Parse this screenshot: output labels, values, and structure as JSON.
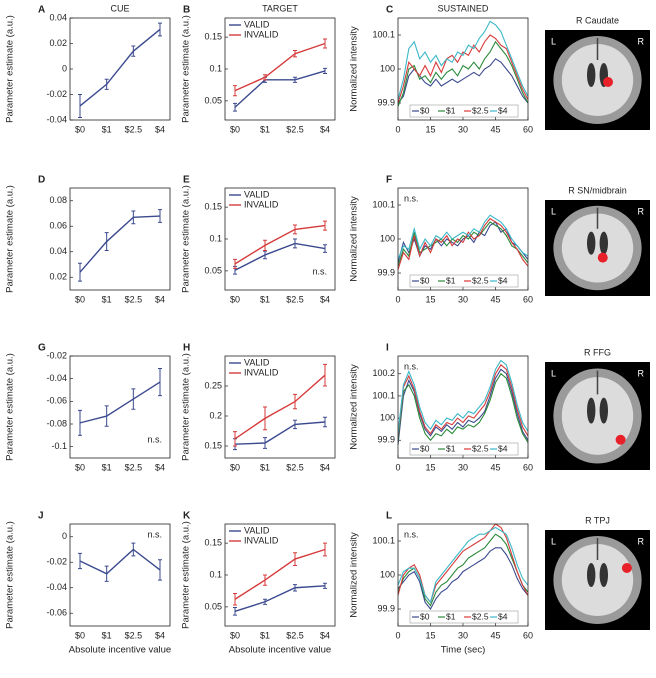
{
  "chart_data": [
    {
      "type": "line",
      "panel": "A",
      "title": "CUE",
      "ylabel": "Parameter estimate (a.u.)",
      "categories": [
        "$0",
        "$1",
        "$2.5",
        "$4"
      ],
      "ylim": [
        -0.04,
        0.04
      ],
      "yticks": [
        -0.04,
        -0.02,
        0,
        0.02,
        0.04
      ],
      "series": [
        {
          "color": "#3b4a8f",
          "values": [
            -0.029,
            -0.012,
            0.014,
            0.031
          ],
          "errors": [
            0.009,
            0.004,
            0.004,
            0.005
          ]
        }
      ]
    },
    {
      "type": "line",
      "panel": "B",
      "title": "TARGET",
      "ylabel": "Parameter estimate (a.u.)",
      "categories": [
        "$0",
        "$1",
        "$2.5",
        "$4"
      ],
      "ylim": [
        0.02,
        0.18
      ],
      "yticks": [
        0.05,
        0.1,
        0.15
      ],
      "series": [
        {
          "name": "VALID",
          "color": "#3b4a8f",
          "values": [
            0.04,
            0.083,
            0.083,
            0.097
          ],
          "errors": [
            0.006,
            0.004,
            0.004,
            0.004
          ]
        },
        {
          "name": "INVALID",
          "color": "#d63a3a",
          "values": [
            0.066,
            0.087,
            0.124,
            0.14
          ],
          "errors": [
            0.008,
            0.004,
            0.005,
            0.007
          ]
        }
      ]
    },
    {
      "type": "line",
      "panel": "C",
      "title": "SUSTAINED",
      "ylabel": "Normalized intensity",
      "x": [
        0,
        2.5,
        5,
        7.5,
        10,
        12.5,
        15,
        17.5,
        20,
        22.5,
        25,
        27.5,
        30,
        32.5,
        35,
        37.5,
        40,
        42.5,
        45,
        47.5,
        50,
        52.5,
        55,
        57.5,
        60
      ],
      "xlim": [
        0,
        60
      ],
      "xticks": [
        0,
        15,
        30,
        45,
        60
      ],
      "ylim": [
        99.85,
        100.15
      ],
      "yticks": [
        99.9,
        100,
        100.1
      ],
      "series": [
        {
          "name": "$0",
          "color": "#3b4a8f",
          "values": [
            99.9,
            99.92,
            99.98,
            100.0,
            99.98,
            99.96,
            99.95,
            99.97,
            99.95,
            99.96,
            99.97,
            99.96,
            99.97,
            99.98,
            99.99,
            99.98,
            100.0,
            100.01,
            100.03,
            100.02,
            100.0,
            99.98,
            99.95,
            99.92,
            99.9
          ]
        },
        {
          "name": "$1",
          "color": "#2a8a3a",
          "values": [
            99.89,
            99.93,
            100.0,
            100.01,
            99.97,
            99.98,
            99.96,
            99.99,
            99.97,
            99.99,
            100.0,
            99.98,
            100.01,
            100.0,
            100.02,
            100.0,
            100.03,
            100.05,
            100.08,
            100.06,
            100.04,
            100.01,
            99.97,
            99.93,
            99.9
          ]
        },
        {
          "name": "$2.5",
          "color": "#d63a3a",
          "values": [
            99.9,
            99.95,
            100.02,
            100.0,
            99.98,
            100.01,
            99.98,
            100.02,
            99.99,
            100.03,
            100.04,
            100.02,
            100.05,
            100.04,
            100.07,
            100.05,
            100.08,
            100.1,
            100.09,
            100.07,
            100.06,
            100.02,
            99.98,
            99.94,
            99.91
          ]
        },
        {
          "name": "$4",
          "color": "#3ab8c8",
          "values": [
            99.91,
            99.97,
            100.06,
            100.08,
            100.03,
            100.05,
            100.02,
            100.04,
            100.01,
            100.03,
            100.02,
            100.05,
            100.04,
            100.07,
            100.06,
            100.09,
            100.11,
            100.14,
            100.13,
            100.11,
            100.07,
            100.03,
            99.99,
            99.95,
            99.92
          ]
        }
      ]
    },
    {
      "type": "line",
      "panel": "D",
      "ylabel": "Parameter estimate (a.u.)",
      "categories": [
        "$0",
        "$1",
        "$2.5",
        "$4"
      ],
      "ylim": [
        0.01,
        0.09
      ],
      "yticks": [
        0.02,
        0.04,
        0.06,
        0.08
      ],
      "series": [
        {
          "color": "#3b4a8f",
          "values": [
            0.024,
            0.048,
            0.067,
            0.068
          ],
          "errors": [
            0.007,
            0.007,
            0.005,
            0.005
          ]
        }
      ]
    },
    {
      "type": "line",
      "panel": "E",
      "ylabel": "Parameter estimate (a.u.)",
      "annotation": "n.s.",
      "categories": [
        "$0",
        "$1",
        "$2.5",
        "$4"
      ],
      "ylim": [
        0.02,
        0.18
      ],
      "yticks": [
        0.05,
        0.1,
        0.15
      ],
      "series": [
        {
          "name": "VALID",
          "color": "#3b4a8f",
          "values": [
            0.051,
            0.075,
            0.093,
            0.085
          ],
          "errors": [
            0.006,
            0.006,
            0.007,
            0.006
          ]
        },
        {
          "name": "INVALID",
          "color": "#d63a3a",
          "values": [
            0.061,
            0.09,
            0.115,
            0.121
          ],
          "errors": [
            0.007,
            0.008,
            0.007,
            0.007
          ]
        }
      ]
    },
    {
      "type": "line",
      "panel": "F",
      "ylabel": "Normalized intensity",
      "annotation": "n.s.",
      "x": [
        0,
        2.5,
        5,
        7.5,
        10,
        12.5,
        15,
        17.5,
        20,
        22.5,
        25,
        27.5,
        30,
        32.5,
        35,
        37.5,
        40,
        42.5,
        45,
        47.5,
        50,
        52.5,
        55,
        57.5,
        60
      ],
      "xlim": [
        0,
        60
      ],
      "xticks": [
        0,
        15,
        30,
        45,
        60
      ],
      "ylim": [
        99.85,
        100.15
      ],
      "yticks": [
        99.9,
        100,
        100.1
      ],
      "series": [
        {
          "name": "$0",
          "color": "#3b4a8f",
          "values": [
            99.93,
            99.99,
            99.96,
            100.0,
            99.95,
            99.98,
            99.97,
            100.0,
            99.98,
            100.0,
            99.99,
            99.98,
            100.0,
            100.01,
            99.99,
            100.02,
            100.01,
            100.04,
            100.05,
            100.02,
            100.03,
            99.99,
            99.98,
            99.96,
            99.94
          ]
        },
        {
          "name": "$1",
          "color": "#2a8a3a",
          "values": [
            99.92,
            99.97,
            99.95,
            100.02,
            99.96,
            99.97,
            99.98,
            99.99,
            100.0,
            99.98,
            100.0,
            99.99,
            100.01,
            100.0,
            100.02,
            100.01,
            100.03,
            100.05,
            100.04,
            100.03,
            100.01,
            99.98,
            99.97,
            99.95,
            99.93
          ]
        },
        {
          "name": "$2.5",
          "color": "#d63a3a",
          "values": [
            99.91,
            99.96,
            99.94,
            100.01,
            99.95,
            99.99,
            99.96,
            100.0,
            99.99,
            100.01,
            99.98,
            100.0,
            99.99,
            100.02,
            100.0,
            100.01,
            100.04,
            100.06,
            100.05,
            100.04,
            100.02,
            99.99,
            99.97,
            99.94,
            99.92
          ]
        },
        {
          "name": "$4",
          "color": "#3ab8c8",
          "values": [
            99.94,
            99.98,
            99.97,
            100.03,
            99.97,
            100.0,
            99.98,
            100.01,
            100.0,
            100.02,
            100.0,
            100.01,
            100.02,
            100.01,
            100.03,
            100.02,
            100.05,
            100.07,
            100.06,
            100.05,
            100.03,
            100.0,
            99.98,
            99.96,
            99.95
          ]
        }
      ]
    },
    {
      "type": "line",
      "panel": "G",
      "ylabel": "Parameter estimate (a.u.)",
      "annotation": "n.s.",
      "categories": [
        "$0",
        "$1",
        "$2.5",
        "$4"
      ],
      "ylim": [
        -0.11,
        -0.02
      ],
      "yticks": [
        -0.1,
        -0.08,
        -0.06,
        -0.04,
        -0.02
      ],
      "series": [
        {
          "color": "#3b4a8f",
          "values": [
            -0.079,
            -0.073,
            -0.058,
            -0.043
          ],
          "errors": [
            0.011,
            0.009,
            0.009,
            0.012
          ]
        }
      ]
    },
    {
      "type": "line",
      "panel": "H",
      "ylabel": "Parameter estimate (a.u.)",
      "categories": [
        "$0",
        "$1",
        "$2.5",
        "$4"
      ],
      "ylim": [
        0.13,
        0.3
      ],
      "yticks": [
        0.15,
        0.2,
        0.25
      ],
      "series": [
        {
          "name": "VALID",
          "color": "#3b4a8f",
          "values": [
            0.153,
            0.155,
            0.186,
            0.19
          ],
          "errors": [
            0.009,
            0.009,
            0.007,
            0.008
          ]
        },
        {
          "name": "INVALID",
          "color": "#d63a3a",
          "values": [
            0.162,
            0.196,
            0.224,
            0.268
          ],
          "errors": [
            0.012,
            0.019,
            0.012,
            0.018
          ]
        }
      ]
    },
    {
      "type": "line",
      "panel": "I",
      "ylabel": "Normalized intensity",
      "annotation": "n.s.",
      "x": [
        0,
        2.5,
        5,
        7.5,
        10,
        12.5,
        15,
        17.5,
        20,
        22.5,
        25,
        27.5,
        30,
        32.5,
        35,
        37.5,
        40,
        42.5,
        45,
        47.5,
        50,
        52.5,
        55,
        57.5,
        60
      ],
      "xlim": [
        0,
        60
      ],
      "xticks": [
        0,
        15,
        30,
        45,
        60
      ],
      "ylim": [
        99.82,
        100.28
      ],
      "yticks": [
        99.9,
        100,
        100.1,
        100.2
      ],
      "series": [
        {
          "name": "$0",
          "color": "#3b4a8f",
          "values": [
            99.88,
            100.1,
            100.17,
            100.12,
            100.02,
            99.95,
            99.92,
            99.96,
            99.94,
            99.97,
            99.95,
            99.98,
            99.96,
            99.99,
            99.98,
            100.0,
            100.03,
            100.1,
            100.18,
            100.22,
            100.2,
            100.12,
            100.02,
            99.94,
            99.9
          ]
        },
        {
          "name": "$1",
          "color": "#2a8a3a",
          "values": [
            99.9,
            100.12,
            100.15,
            100.1,
            100.0,
            99.93,
            99.9,
            99.93,
            99.92,
            99.95,
            99.93,
            99.96,
            99.95,
            99.97,
            99.96,
            99.98,
            100.02,
            100.08,
            100.16,
            100.2,
            100.18,
            100.1,
            100.0,
            99.93,
            99.89
          ]
        },
        {
          "name": "$2.5",
          "color": "#d63a3a",
          "values": [
            99.92,
            100.14,
            100.19,
            100.13,
            100.03,
            99.96,
            99.93,
            99.97,
            99.95,
            99.98,
            99.97,
            100.0,
            99.98,
            100.01,
            100.0,
            100.03,
            100.06,
            100.12,
            100.2,
            100.24,
            100.22,
            100.14,
            100.04,
            99.96,
            99.92
          ]
        },
        {
          "name": "$4",
          "color": "#3ab8c8",
          "values": [
            99.93,
            100.15,
            100.21,
            100.15,
            100.05,
            99.98,
            99.95,
            99.99,
            99.97,
            100.0,
            99.99,
            100.02,
            100.0,
            100.03,
            100.02,
            100.05,
            100.08,
            100.14,
            100.22,
            100.26,
            100.24,
            100.16,
            100.06,
            99.98,
            99.94
          ]
        }
      ]
    },
    {
      "type": "line",
      "panel": "J",
      "ylabel": "Parameter estimate (a.u.)",
      "xlabel": "Absolute incentive value",
      "annotation": "n.s.",
      "categories": [
        "$0",
        "$1",
        "$2.5",
        "$4"
      ],
      "ylim": [
        -0.07,
        0.01
      ],
      "yticks": [
        -0.06,
        -0.04,
        -0.02,
        0
      ],
      "series": [
        {
          "color": "#3b4a8f",
          "values": [
            -0.019,
            -0.029,
            -0.01,
            -0.026
          ],
          "errors": [
            0.006,
            0.006,
            0.005,
            0.008
          ]
        }
      ]
    },
    {
      "type": "line",
      "panel": "K",
      "ylabel": "Parameter estimate (a.u.)",
      "xlabel": "Absolute incentive value",
      "categories": [
        "$0",
        "$1",
        "$2.5",
        "$4"
      ],
      "ylim": [
        0.02,
        0.18
      ],
      "yticks": [
        0.05,
        0.1,
        0.15
      ],
      "series": [
        {
          "name": "VALID",
          "color": "#3b4a8f",
          "values": [
            0.043,
            0.058,
            0.08,
            0.083
          ],
          "errors": [
            0.006,
            0.004,
            0.005,
            0.004
          ]
        },
        {
          "name": "INVALID",
          "color": "#d63a3a",
          "values": [
            0.062,
            0.092,
            0.125,
            0.14
          ],
          "errors": [
            0.009,
            0.008,
            0.01,
            0.01
          ]
        }
      ]
    },
    {
      "type": "line",
      "panel": "L",
      "ylabel": "Normalized intensity",
      "xlabel": "Time (sec)",
      "annotation": "n.s.",
      "x": [
        0,
        2.5,
        5,
        7.5,
        10,
        12.5,
        15,
        17.5,
        20,
        22.5,
        25,
        27.5,
        30,
        32.5,
        35,
        37.5,
        40,
        42.5,
        45,
        47.5,
        50,
        52.5,
        55,
        57.5,
        60
      ],
      "xlim": [
        0,
        60
      ],
      "xticks": [
        0,
        15,
        30,
        45,
        60
      ],
      "ylim": [
        99.85,
        100.15
      ],
      "yticks": [
        99.9,
        100,
        100.1
      ],
      "series": [
        {
          "name": "$0",
          "color": "#3b4a8f",
          "values": [
            99.96,
            99.98,
            100.0,
            100.01,
            99.98,
            99.92,
            99.9,
            99.93,
            99.95,
            99.96,
            99.98,
            99.99,
            100.01,
            100.02,
            100.03,
            100.04,
            100.05,
            100.07,
            100.08,
            100.08,
            100.06,
            100.03,
            99.99,
            99.96,
            99.94
          ]
        },
        {
          "name": "$1",
          "color": "#2a8a3a",
          "values": [
            99.95,
            99.99,
            100.01,
            100.02,
            99.99,
            99.93,
            99.91,
            99.95,
            99.97,
            99.98,
            100.0,
            100.02,
            100.03,
            100.05,
            100.06,
            100.07,
            100.08,
            100.1,
            100.12,
            100.11,
            100.09,
            100.05,
            100.01,
            99.97,
            99.95
          ]
        },
        {
          "name": "$2.5",
          "color": "#d63a3a",
          "values": [
            99.94,
            100.0,
            100.02,
            100.03,
            100.0,
            99.94,
            99.92,
            99.97,
            99.99,
            100.01,
            100.03,
            100.05,
            100.07,
            100.08,
            100.09,
            100.1,
            100.11,
            100.13,
            100.15,
            100.14,
            100.11,
            100.06,
            100.01,
            99.97,
            99.94
          ]
        },
        {
          "name": "$4",
          "color": "#3ab8c8",
          "values": [
            99.97,
            100.01,
            100.02,
            100.02,
            99.99,
            99.94,
            99.92,
            99.98,
            100.0,
            100.02,
            100.04,
            100.06,
            100.08,
            100.1,
            100.11,
            100.12,
            100.12,
            100.13,
            100.14,
            100.13,
            100.12,
            100.08,
            100.03,
            99.99,
            99.97
          ]
        }
      ]
    }
  ],
  "images": [
    {
      "title": "R Caudate",
      "left": "L",
      "right": "R"
    },
    {
      "title": "R SN/midbrain",
      "left": "L",
      "right": "R"
    },
    {
      "title": "R FFG",
      "left": "L",
      "right": "R"
    },
    {
      "title": "R TPJ",
      "left": "L",
      "right": "R"
    }
  ]
}
